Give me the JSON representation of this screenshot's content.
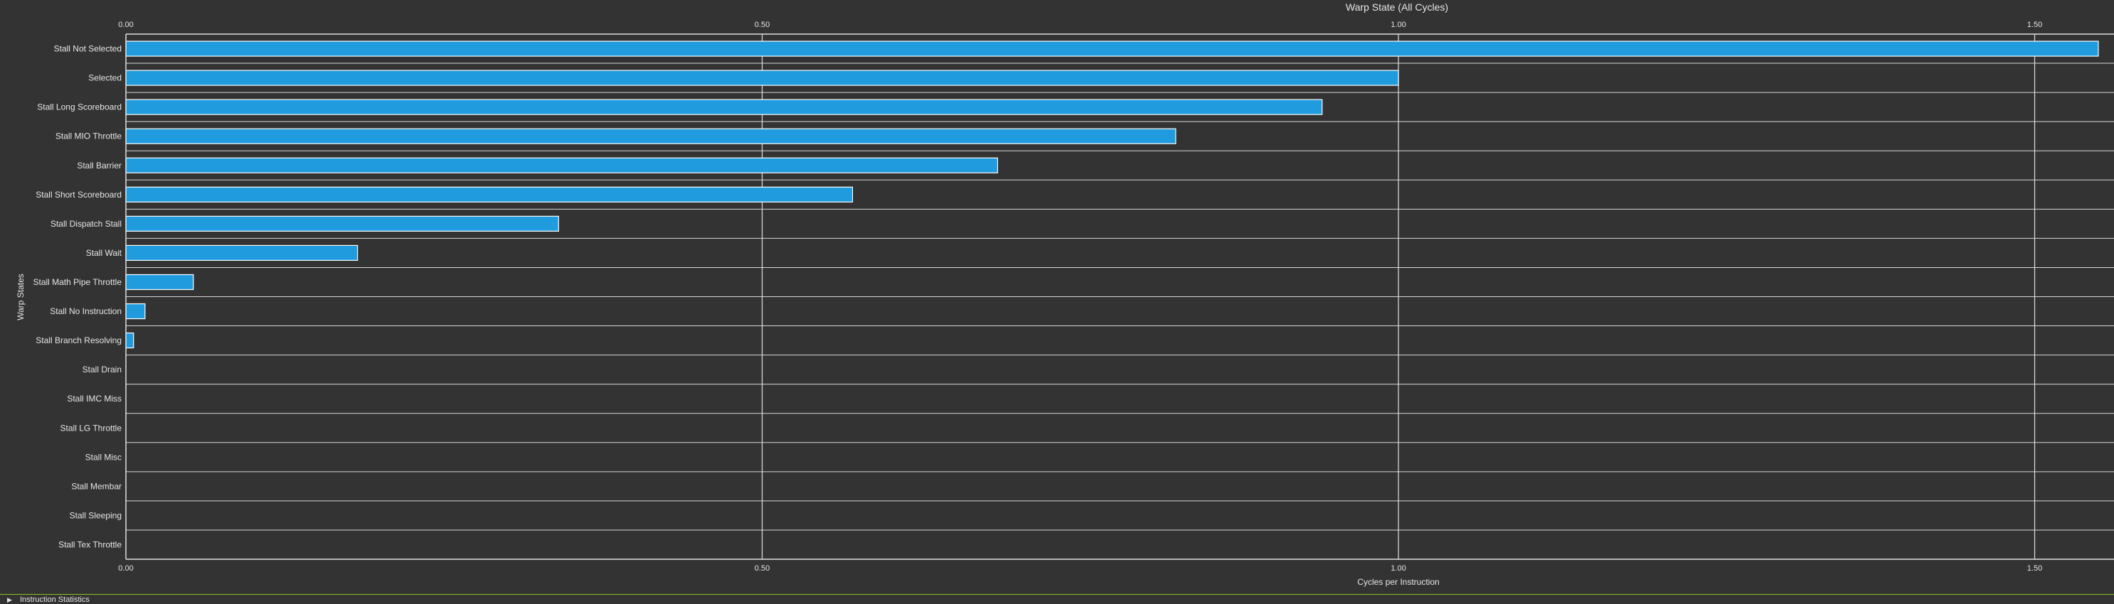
{
  "chart_data": {
    "type": "bar",
    "orientation": "horizontal",
    "title": "Warp State (All Cycles)",
    "xlabel": "Cycles per Instruction",
    "ylabel": "Warp States",
    "xlim": [
      0,
      1.56
    ],
    "xticks": [
      "0.00",
      "0.50",
      "1.00",
      "1.50"
    ],
    "categories": [
      "Stall Not Selected",
      "Selected",
      "Stall Long Scoreboard",
      "Stall MIO Throttle",
      "Stall Barrier",
      "Stall Short Scoreboard",
      "Stall Dispatch Stall",
      "Stall Wait",
      "Stall Math Pipe Throttle",
      "Stall No Instruction",
      "Stall Branch Resolving",
      "Stall Drain",
      "Stall IMC Miss",
      "Stall LG Throttle",
      "Stall Misc",
      "Stall Membar",
      "Stall Sleeping",
      "Stall Tex Throttle"
    ],
    "values": [
      1.55,
      1.0,
      0.94,
      0.825,
      0.685,
      0.571,
      0.34,
      0.182,
      0.053,
      0.015,
      0.006,
      0,
      0,
      0,
      0,
      0,
      0,
      0
    ],
    "grid": true,
    "bar_color": "#1f9bde"
  },
  "section_bar": {
    "label": "Instruction Statistics",
    "expand_icon": "triangle-right-icon"
  }
}
